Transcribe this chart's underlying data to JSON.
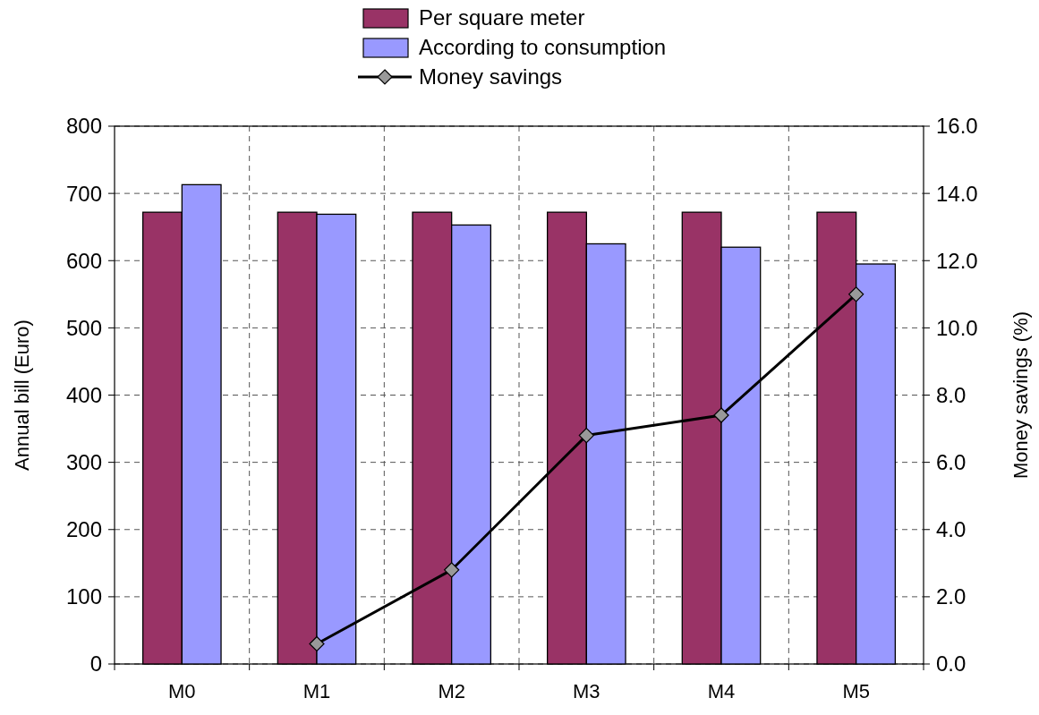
{
  "chart_data": {
    "type": "bar",
    "categories": [
      "M0",
      "M1",
      "M2",
      "M3",
      "M4",
      "M5"
    ],
    "series": [
      {
        "name": "Per square meter",
        "color": "#993366",
        "values": [
          672,
          672,
          672,
          672,
          672,
          672
        ]
      },
      {
        "name": "According to consumption",
        "color": "#9999ff",
        "values": [
          713,
          669,
          653,
          625,
          620,
          595
        ]
      },
      {
        "name": "Money savings",
        "type": "line",
        "axis": "y2",
        "color": "#000000",
        "values": [
          null,
          0.6,
          2.8,
          6.8,
          7.4,
          11.0
        ]
      }
    ],
    "ylabel": "Annual bill (Euro)",
    "y2label": "Money savings (%)",
    "ylim": [
      0,
      800
    ],
    "yticks": [
      0,
      100,
      200,
      300,
      400,
      500,
      600,
      700,
      800
    ],
    "y2lim": [
      0,
      16
    ],
    "y2ticks": [
      {
        "value": 0,
        "label": "0.0"
      },
      {
        "value": 2,
        "label": "2.0"
      },
      {
        "value": 4,
        "label": "4.0"
      },
      {
        "value": 6,
        "label": "6.0"
      },
      {
        "value": 8,
        "label": "8.0"
      },
      {
        "value": 10,
        "label": "10.0"
      },
      {
        "value": 12,
        "label": "12.0"
      },
      {
        "value": 14,
        "label": "14.0"
      },
      {
        "value": 16,
        "label": "16.0"
      }
    ],
    "grid": true,
    "legend": "top",
    "marker": "diamond"
  }
}
